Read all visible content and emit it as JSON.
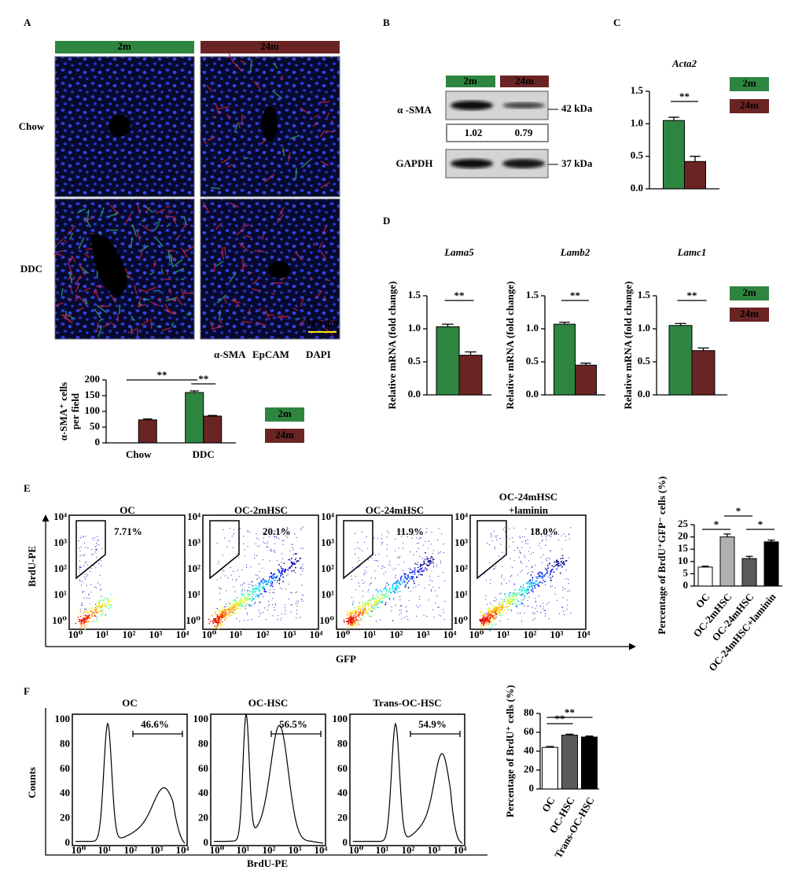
{
  "panels": [
    "A",
    "B",
    "C",
    "D",
    "E",
    "F"
  ],
  "panel_a": {
    "columns": [
      "2m",
      "24m"
    ],
    "rows": [
      "Chow",
      "DDC"
    ],
    "scale_bar": "100 μm",
    "stains": [
      "α-SMA",
      "EpCAM",
      "DAPI"
    ]
  },
  "panel_b": {
    "columns": [
      "2m",
      "24m"
    ],
    "proteins": [
      "α -SMA",
      "GAPDH"
    ],
    "sizes": [
      "42 kDa",
      "37 kDa"
    ],
    "ratios": [
      1.02,
      0.79
    ]
  },
  "panel_e": {
    "plots": [
      {
        "title": [
          "OC"
        ],
        "gate": "7.71%"
      },
      {
        "title": [
          "OC-2mHSC"
        ],
        "gate": "20.1%"
      },
      {
        "title": [
          "OC-24mHSC"
        ],
        "gate": "11.9%"
      },
      {
        "title": [
          "OC-24mHSC",
          "+laminin"
        ],
        "gate": "18.0%"
      }
    ],
    "x_label": "GFP",
    "y_label": "BrdU-PE",
    "ticks": [
      "10⁰",
      "10¹",
      "10²",
      "10³",
      "10⁴"
    ]
  },
  "panel_f": {
    "plots": [
      {
        "title": "OC",
        "gate": "46.6%"
      },
      {
        "title": "OC-HSC",
        "gate": "56.5%"
      },
      {
        "title": "Trans-OC-HSC",
        "gate": "54.9%"
      }
    ],
    "x_label": "BrdU-PE",
    "y_label": "Counts",
    "x_ticks": [
      "10⁰",
      "10¹",
      "10²",
      "10³",
      "10⁴"
    ],
    "y_ticks": [
      0,
      20,
      40,
      60,
      80,
      100
    ]
  },
  "chart_data": [
    {
      "type": "bar",
      "y_label": [
        "α-SMA⁺ cells",
        "per field"
      ],
      "categories": [
        "Chow",
        "DDC"
      ],
      "series": [
        {
          "name": "2m",
          "color": "#2e8540",
          "values": [
            null,
            160
          ],
          "errors": [
            null,
            5
          ]
        },
        {
          "name": "24m",
          "color": "#6b2424",
          "values": [
            73,
            85
          ],
          "errors": [
            3,
            2
          ]
        }
      ],
      "ylim": [
        0,
        200
      ],
      "yticks": [
        0,
        50,
        100,
        150,
        200
      ],
      "significance": [
        "**",
        "**"
      ]
    },
    {
      "type": "bar",
      "title": "Acta2",
      "series": [
        {
          "name": "2m",
          "color": "#2e8540",
          "values": [
            1.05
          ],
          "errors": [
            0.05
          ]
        },
        {
          "name": "24m",
          "color": "#6b2424",
          "values": [
            0.42
          ],
          "errors": [
            0.08
          ]
        }
      ],
      "ylim": [
        0,
        1.5
      ],
      "yticks": [
        {
          "value": 0,
          "label": "0.0"
        },
        0.5,
        {
          "value": 1,
          "label": "1.0"
        },
        1.5
      ],
      "significance": [
        "**"
      ]
    },
    {
      "type": "bar",
      "title": "Lama5",
      "y_label": "Relative mRNA (fold change)",
      "series": [
        {
          "color": "#2e8540",
          "values": [
            1.03
          ],
          "errors": [
            0.04
          ]
        },
        {
          "color": "#6b2424",
          "values": [
            0.6
          ],
          "errors": [
            0.05
          ]
        }
      ],
      "ylim": [
        0,
        1.5
      ],
      "yticks": [
        {
          "value": 0,
          "label": "0.0"
        },
        0.5,
        {
          "value": 1,
          "label": "1.0"
        },
        1.5
      ],
      "significance": [
        "**"
      ]
    },
    {
      "type": "bar",
      "title": "Lamb2",
      "y_label": "Relative mRNA (fold change)",
      "series": [
        {
          "color": "#2e8540",
          "values": [
            1.07
          ],
          "errors": [
            0.03
          ]
        },
        {
          "color": "#6b2424",
          "values": [
            0.45
          ],
          "errors": [
            0.03
          ]
        }
      ],
      "ylim": [
        0,
        1.5
      ],
      "yticks": [
        {
          "value": 0,
          "label": "0.0"
        },
        0.5,
        {
          "value": 1,
          "label": "1.0"
        },
        1.5
      ],
      "significance": [
        "**"
      ]
    },
    {
      "type": "bar",
      "title": "Lamc1",
      "y_label": "Relative mRNA (fold change)",
      "series": [
        {
          "name": "2m",
          "color": "#2e8540",
          "values": [
            1.05
          ],
          "errors": [
            0.03
          ]
        },
        {
          "name": "24m",
          "color": "#6b2424",
          "values": [
            0.67
          ],
          "errors": [
            0.04
          ]
        }
      ],
      "ylim": [
        0,
        1.5
      ],
      "yticks": [
        {
          "value": 0,
          "label": "0.0"
        },
        0.5,
        {
          "value": 1,
          "label": "1.0"
        },
        1.5
      ],
      "significance": [
        "**"
      ]
    },
    {
      "type": "bar",
      "y_label": "Percentage of BrdU⁺GFP⁻ cells (%)",
      "categories": [
        "OC",
        "OC-2mHSC",
        "OC-24mHSC",
        "OC-24mHSC+laminin"
      ],
      "values": [
        7.7,
        20,
        11.2,
        18
      ],
      "errors": [
        0.4,
        1.2,
        0.9,
        0.7
      ],
      "colors": [
        "#ffffff",
        "#b0b0b0",
        "#5a5a5a",
        "#000000"
      ],
      "ylim": [
        0,
        25
      ],
      "yticks": [
        0,
        5,
        10,
        15,
        20,
        25
      ],
      "significance": [
        "*",
        "*",
        "*"
      ]
    },
    {
      "type": "bar",
      "y_label": "Percentage of BrdU⁺ cells (%)",
      "categories": [
        "OC",
        "OC-HSC",
        "Trans-OC-HSC"
      ],
      "values": [
        44,
        57,
        55
      ],
      "errors": [
        1,
        1,
        1
      ],
      "colors": [
        "#ffffff",
        "#5a5a5a",
        "#000000"
      ],
      "ylim": [
        0,
        80
      ],
      "yticks": [
        0,
        20,
        40,
        60,
        80
      ],
      "significance": [
        "**",
        "**"
      ]
    }
  ]
}
